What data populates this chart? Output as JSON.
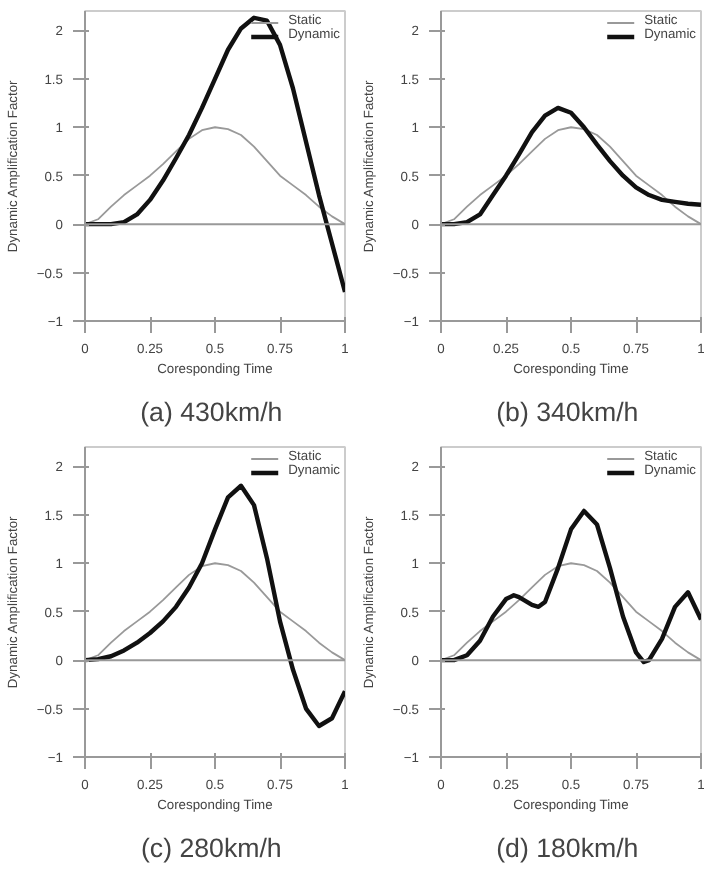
{
  "chart_data": [
    {
      "type": "line",
      "ref_lines": [
        {
          "axis": "y",
          "value": 0,
          "color": "#999999"
        }
      ],
      "title": "(a)  430km/h",
      "xlabel": "Coresponding Time",
      "ylabel": "Dynamic Amplification Factor",
      "xlim": [
        0,
        1
      ],
      "xticks": [
        0,
        0.25,
        0.5,
        0.75,
        1
      ],
      "ylim": [
        -1,
        2.2
      ],
      "yticks": [
        -1,
        -0.5,
        0,
        0.5,
        1,
        1.5,
        2
      ],
      "legend": "top right",
      "grid": false,
      "x": [
        0,
        0.05,
        0.1,
        0.15,
        0.2,
        0.25,
        0.3,
        0.35,
        0.4,
        0.45,
        0.5,
        0.55,
        0.6,
        0.65,
        0.7,
        0.75,
        0.8,
        0.85,
        0.9,
        0.95,
        1
      ],
      "series": [
        {
          "name": "Static",
          "color": "#999999",
          "values": [
            0,
            0.05,
            0.18,
            0.3,
            0.4,
            0.5,
            0.62,
            0.75,
            0.88,
            0.97,
            1.0,
            0.98,
            0.92,
            0.8,
            0.65,
            0.5,
            0.4,
            0.3,
            0.18,
            0.08,
            0
          ]
        },
        {
          "name": "Dynamic",
          "color": "#111111",
          "values": [
            0,
            0,
            0,
            0.02,
            0.1,
            0.25,
            0.45,
            0.68,
            0.92,
            1.2,
            1.5,
            1.8,
            2.02,
            2.13,
            2.1,
            1.85,
            1.4,
            0.85,
            0.3,
            -0.2,
            -0.7
          ]
        }
      ]
    },
    {
      "type": "line",
      "ref_lines": [
        {
          "axis": "y",
          "value": 0,
          "color": "#999999"
        }
      ],
      "title": "(b)  340km/h",
      "xlabel": "Coresponding Time",
      "ylabel": "Dynamic Amplification Factor",
      "xlim": [
        0,
        1
      ],
      "xticks": [
        0,
        0.25,
        0.5,
        0.75,
        1
      ],
      "ylim": [
        -1,
        2.2
      ],
      "yticks": [
        -1,
        -0.5,
        0,
        0.5,
        1,
        1.5,
        2
      ],
      "legend": "top right",
      "grid": false,
      "x": [
        0,
        0.05,
        0.1,
        0.15,
        0.2,
        0.25,
        0.3,
        0.35,
        0.4,
        0.45,
        0.5,
        0.55,
        0.6,
        0.65,
        0.7,
        0.75,
        0.8,
        0.85,
        0.9,
        0.95,
        1
      ],
      "series": [
        {
          "name": "Static",
          "color": "#999999",
          "values": [
            0,
            0.05,
            0.18,
            0.3,
            0.4,
            0.5,
            0.62,
            0.75,
            0.88,
            0.97,
            1.0,
            0.98,
            0.92,
            0.8,
            0.65,
            0.5,
            0.4,
            0.3,
            0.18,
            0.08,
            0
          ]
        },
        {
          "name": "Dynamic",
          "color": "#111111",
          "values": [
            0,
            0,
            0.02,
            0.1,
            0.3,
            0.5,
            0.72,
            0.95,
            1.12,
            1.2,
            1.15,
            1.0,
            0.82,
            0.65,
            0.5,
            0.38,
            0.3,
            0.25,
            0.23,
            0.21,
            0.2
          ]
        }
      ]
    },
    {
      "type": "line",
      "ref_lines": [
        {
          "axis": "y",
          "value": 0,
          "color": "#999999"
        }
      ],
      "title": "(c)  280km/h",
      "xlabel": "Coresponding Time",
      "ylabel": "Dynamic Amplification Factor",
      "xlim": [
        0,
        1
      ],
      "xticks": [
        0,
        0.25,
        0.5,
        0.75,
        1
      ],
      "ylim": [
        -1,
        2.2
      ],
      "yticks": [
        -1,
        -0.5,
        0,
        0.5,
        1,
        1.5,
        2
      ],
      "legend": "top right",
      "grid": false,
      "x": [
        0,
        0.05,
        0.1,
        0.15,
        0.2,
        0.25,
        0.3,
        0.35,
        0.4,
        0.45,
        0.5,
        0.55,
        0.6,
        0.65,
        0.7,
        0.75,
        0.8,
        0.85,
        0.9,
        0.95,
        1
      ],
      "series": [
        {
          "name": "Static",
          "color": "#999999",
          "values": [
            0,
            0.05,
            0.18,
            0.3,
            0.4,
            0.5,
            0.62,
            0.75,
            0.88,
            0.97,
            1.0,
            0.98,
            0.92,
            0.8,
            0.65,
            0.5,
            0.4,
            0.3,
            0.18,
            0.08,
            0
          ]
        },
        {
          "name": "Dynamic",
          "color": "#111111",
          "values": [
            0,
            0.01,
            0.04,
            0.1,
            0.18,
            0.28,
            0.4,
            0.55,
            0.75,
            1.0,
            1.35,
            1.68,
            1.8,
            1.6,
            1.05,
            0.4,
            -0.1,
            -0.5,
            -0.68,
            -0.6,
            -0.32
          ]
        }
      ]
    },
    {
      "type": "line",
      "ref_lines": [
        {
          "axis": "y",
          "value": 0,
          "color": "#999999"
        }
      ],
      "title": "(d)  180km/h",
      "xlabel": "Coresponding Time",
      "ylabel": "Dynamic Amplification Factor",
      "xlim": [
        0,
        1
      ],
      "xticks": [
        0,
        0.25,
        0.5,
        0.75,
        1
      ],
      "ylim": [
        -1,
        2.2
      ],
      "yticks": [
        -1,
        -0.5,
        0,
        0.5,
        1,
        1.5,
        2
      ],
      "legend": "top right",
      "grid": false,
      "x": [
        0,
        0.05,
        0.1,
        0.15,
        0.2,
        0.25,
        0.3,
        0.35,
        0.4,
        0.45,
        0.5,
        0.55,
        0.6,
        0.65,
        0.7,
        0.75,
        0.8,
        0.85,
        0.9,
        0.95,
        1
      ],
      "series": [
        {
          "name": "Static",
          "color": "#999999",
          "values": [
            0,
            0.05,
            0.18,
            0.3,
            0.4,
            0.5,
            0.62,
            0.75,
            0.88,
            0.97,
            1.0,
            0.98,
            0.92,
            0.8,
            0.65,
            0.5,
            0.4,
            0.3,
            0.18,
            0.08,
            0
          ]
        },
        {
          "name": "Dynamic",
          "color": "#111111",
          "x": [
            0,
            0.05,
            0.1,
            0.15,
            0.2,
            0.25,
            0.28,
            0.3,
            0.35,
            0.375,
            0.4,
            0.45,
            0.5,
            0.55,
            0.6,
            0.65,
            0.7,
            0.75,
            0.78,
            0.8,
            0.85,
            0.9,
            0.95,
            1
          ],
          "values": [
            0,
            0,
            0.05,
            0.2,
            0.45,
            0.63,
            0.67,
            0.65,
            0.57,
            0.55,
            0.6,
            0.95,
            1.35,
            1.54,
            1.4,
            0.95,
            0.45,
            0.08,
            -0.02,
            0,
            0.22,
            0.55,
            0.7,
            0.42
          ]
        }
      ]
    }
  ]
}
